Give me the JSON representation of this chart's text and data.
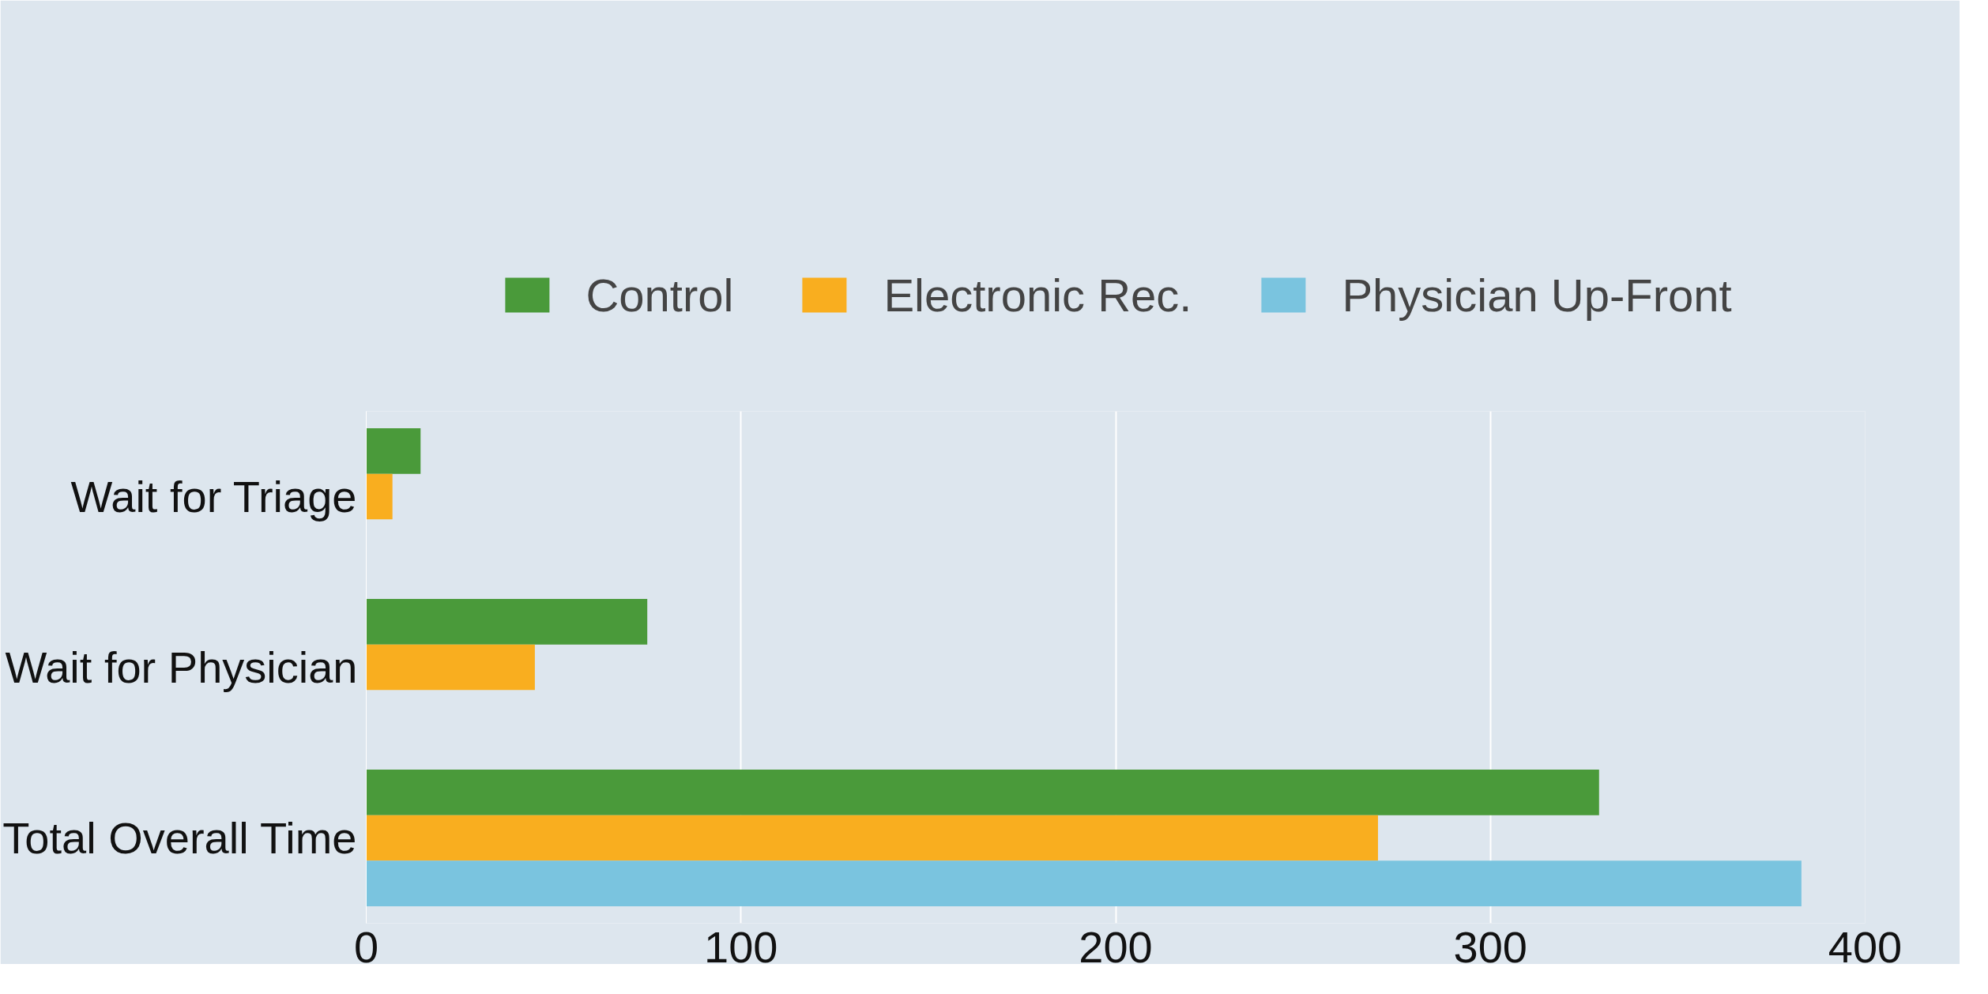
{
  "chart_data": {
    "type": "bar",
    "orientation": "horizontal",
    "categories": [
      "Wait for Triage",
      "Wait for Physician",
      "Total Overall Time"
    ],
    "series": [
      {
        "name": "Control",
        "color": "#4a9a3a",
        "values": [
          14.5,
          75,
          329
        ]
      },
      {
        "name": "Electronic Rec.",
        "color": "#f9ae1f",
        "values": [
          7,
          45,
          270
        ]
      },
      {
        "name": "Physician Up-Front",
        "color": "#7ac4df",
        "values": [
          null,
          null,
          383
        ]
      }
    ],
    "xlim": [
      0,
      400
    ],
    "xticks": [
      0,
      100,
      200,
      300,
      400
    ],
    "grid": "x",
    "legend": "top"
  }
}
